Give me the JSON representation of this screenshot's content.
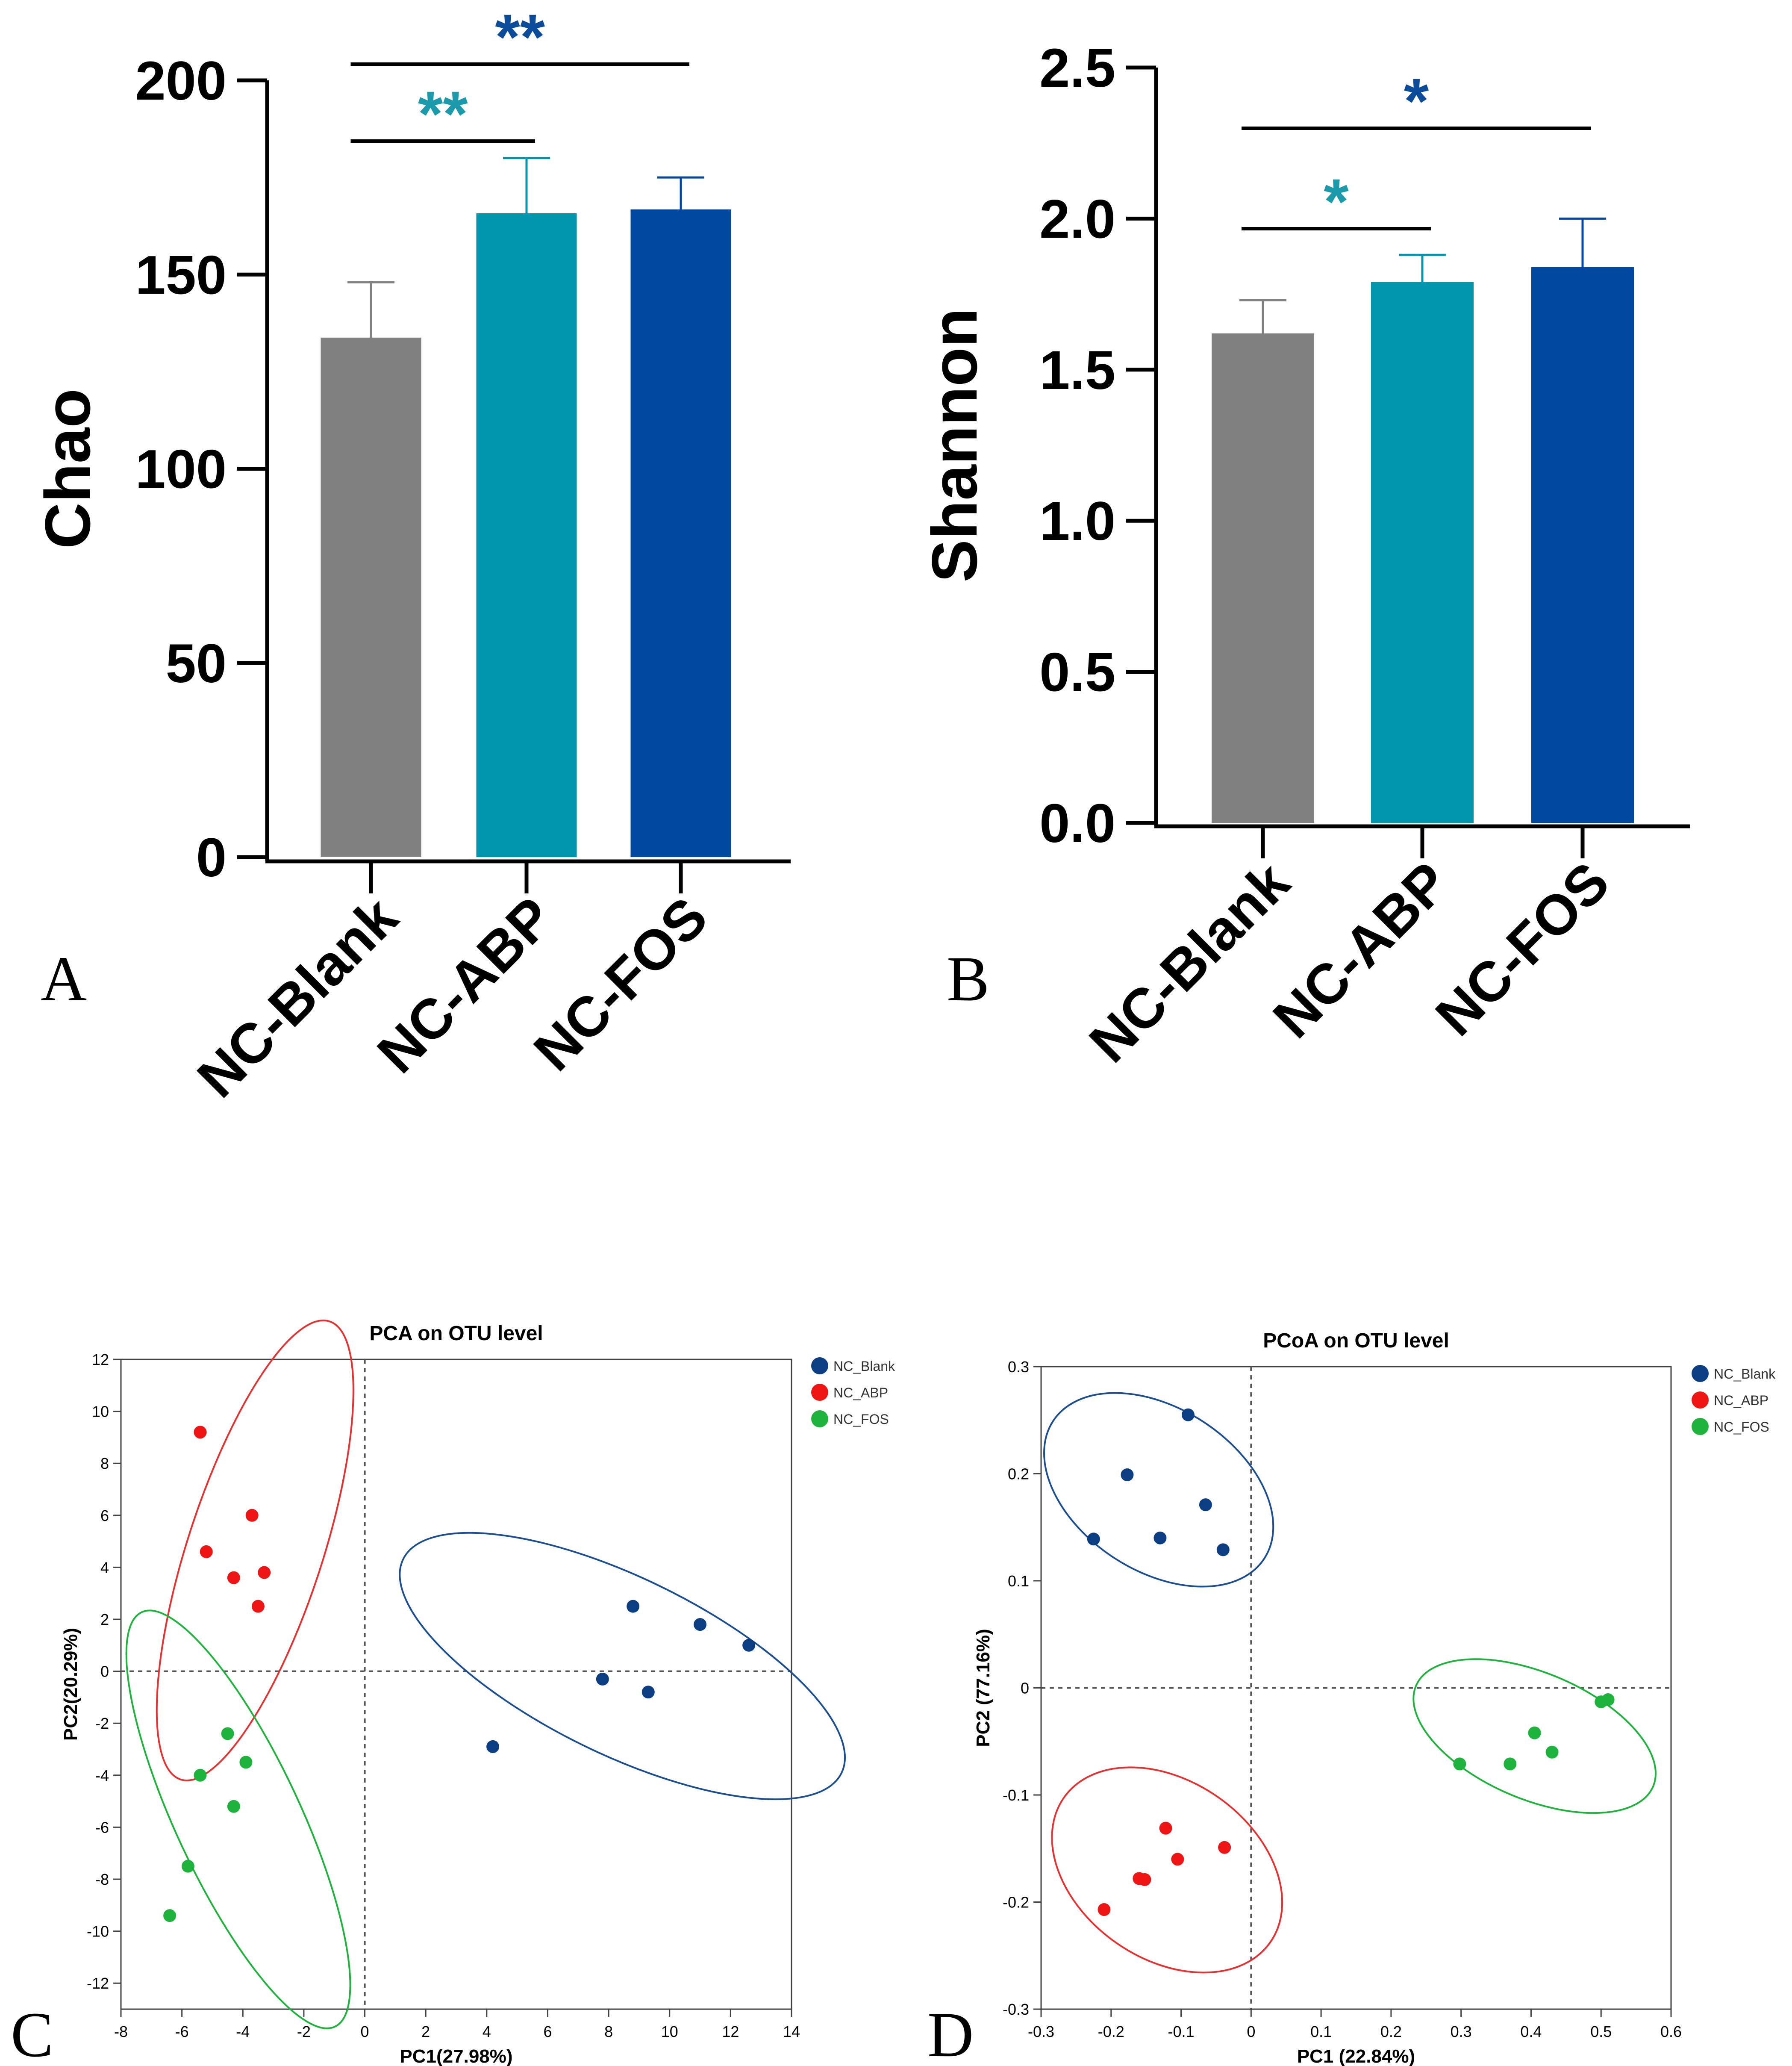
{
  "panel_letters": {
    "A": "A",
    "B": "B",
    "C": "C",
    "D": "D"
  },
  "colors": {
    "blank": "#808080",
    "abp": "#0096AD",
    "fos": "#0048A0",
    "star_abp": "#1A9AAA",
    "star_fos": "#0B4C9A",
    "pt_blank": "#0C3E83",
    "pt_abp": "#F01515",
    "pt_fos": "#1DB33C",
    "ell_blue": "#1C4F92",
    "ell_red": "#E83030",
    "ell_green": "#1DB33C"
  },
  "chart_data": [
    {
      "id": "A",
      "type": "bar",
      "ylabel": "Chao",
      "ylim": [
        0,
        200
      ],
      "yticks": [
        "0",
        "50",
        "100",
        "150",
        "200"
      ],
      "categories": [
        "NC-Blank",
        "NC-ABP",
        "NC-FOS"
      ],
      "values": [
        133,
        165,
        166
      ],
      "errors": [
        15,
        15,
        9
      ],
      "significance": [
        {
          "pair": [
            "NC-Blank",
            "NC-ABP"
          ],
          "label": "**"
        },
        {
          "pair": [
            "NC-Blank",
            "NC-FOS"
          ],
          "label": "**"
        }
      ]
    },
    {
      "id": "B",
      "type": "bar",
      "ylabel": "Shannon",
      "ylim": [
        0,
        2.5
      ],
      "yticks": [
        "0.0",
        "0.5",
        "1.0",
        "1.5",
        "2.0",
        "2.5"
      ],
      "categories": [
        "NC-Blank",
        "NC-ABP",
        "NC-FOS"
      ],
      "values": [
        1.61,
        1.78,
        1.83
      ],
      "errors": [
        0.12,
        0.1,
        0.17
      ],
      "significance": [
        {
          "pair": [
            "NC-Blank",
            "NC-ABP"
          ],
          "label": "*"
        },
        {
          "pair": [
            "NC-Blank",
            "NC-FOS"
          ],
          "label": "*"
        }
      ]
    },
    {
      "id": "C",
      "type": "scatter",
      "title": "PCA on OTU level",
      "xlabel": "PC1(27.98%)",
      "ylabel": "PC2(20.29%)",
      "xlim": [
        -8,
        14
      ],
      "ylim": [
        -13,
        12
      ],
      "xticks": [
        "-8",
        "-6",
        "-4",
        "-2",
        "0",
        "2",
        "4",
        "6",
        "8",
        "10",
        "12",
        "14"
      ],
      "yticks": [
        "-12",
        "-10",
        "-8",
        "-6",
        "-4",
        "-2",
        "0",
        "2",
        "4",
        "6",
        "8",
        "10",
        "12"
      ],
      "legend": [
        "NC_Blank",
        "NC_ABP",
        "NC_FOS"
      ],
      "legend_position": "top-right",
      "series": [
        {
          "name": "NC_Blank",
          "points": [
            [
              4.2,
              -2.9
            ],
            [
              7.8,
              -0.3
            ],
            [
              8.8,
              2.5
            ],
            [
              9.3,
              -0.8
            ],
            [
              11.0,
              1.8
            ],
            [
              12.6,
              1.0
            ]
          ]
        },
        {
          "name": "NC_ABP",
          "points": [
            [
              -5.4,
              9.2
            ],
            [
              -5.2,
              4.6
            ],
            [
              -3.7,
              6.0
            ],
            [
              -4.3,
              3.6
            ],
            [
              -3.3,
              3.8
            ],
            [
              -3.5,
              2.5
            ]
          ]
        },
        {
          "name": "NC_FOS",
          "points": [
            [
              -4.5,
              -2.4
            ],
            [
              -3.9,
              -3.5
            ],
            [
              -5.4,
              -4.0
            ],
            [
              -4.3,
              -5.2
            ],
            [
              -5.8,
              -7.5
            ],
            [
              -6.4,
              -9.4
            ]
          ]
        }
      ],
      "ellipses": [
        {
          "series": "NC_ABP",
          "cx": -3.6,
          "cy": 4.65,
          "rx": 7.9,
          "ry": 2.6,
          "angle": -72
        },
        {
          "series": "NC_FOS",
          "cx": -4.15,
          "cy": -5.7,
          "rx": 7.5,
          "ry": 2.4,
          "angle": 65
        },
        {
          "series": "NC_Blank",
          "cx": 8.45,
          "cy": 0.2,
          "rx": 8.0,
          "ry": 3.4,
          "angle": 26
        }
      ]
    },
    {
      "id": "D",
      "type": "scatter",
      "title": "PCoA on OTU level",
      "xlabel": "PC1 (22.84%)",
      "ylabel": "PC2 (77.16%)",
      "xlim": [
        -0.3,
        0.6
      ],
      "ylim": [
        -0.3,
        0.3
      ],
      "xticks": [
        "-0.3",
        "-0.2",
        "-0.1",
        "0",
        "0.1",
        "0.2",
        "0.3",
        "0.4",
        "0.5",
        "0.6"
      ],
      "yticks": [
        "-0.3",
        "-0.2",
        "-0.1",
        "0",
        "0.1",
        "0.2",
        "0.3"
      ],
      "legend": [
        "NC_Blank",
        "NC_ABP",
        "NC_FOS"
      ],
      "legend_position": "top-right",
      "series": [
        {
          "name": "NC_Blank",
          "points": [
            [
              -0.225,
              0.139
            ],
            [
              -0.177,
              0.199
            ],
            [
              -0.13,
              0.14
            ],
            [
              -0.09,
              0.255
            ],
            [
              -0.065,
              0.171
            ],
            [
              -0.04,
              0.129
            ]
          ]
        },
        {
          "name": "NC_ABP",
          "points": [
            [
              -0.21,
              -0.207
            ],
            [
              -0.16,
              -0.178
            ],
            [
              -0.152,
              -0.179
            ],
            [
              -0.122,
              -0.131
            ],
            [
              -0.105,
              -0.16
            ],
            [
              -0.038,
              -0.149
            ]
          ]
        },
        {
          "name": "NC_FOS",
          "points": [
            [
              0.298,
              -0.071
            ],
            [
              0.37,
              -0.071
            ],
            [
              0.405,
              -0.042
            ],
            [
              0.43,
              -0.06
            ],
            [
              0.5,
              -0.013
            ],
            [
              0.51,
              -0.011
            ]
          ]
        }
      ],
      "ellipses": [
        {
          "series": "NC_Blank",
          "cx": -0.132,
          "cy": 0.185,
          "rx": 0.18,
          "ry": 0.076,
          "angle": 33
        },
        {
          "series": "NC_ABP",
          "cx": -0.12,
          "cy": -0.17,
          "rx": 0.18,
          "ry": 0.083,
          "angle": 35
        },
        {
          "series": "NC_FOS",
          "cx": 0.405,
          "cy": -0.045,
          "rx": 0.184,
          "ry": 0.059,
          "angle": 23
        }
      ]
    }
  ]
}
